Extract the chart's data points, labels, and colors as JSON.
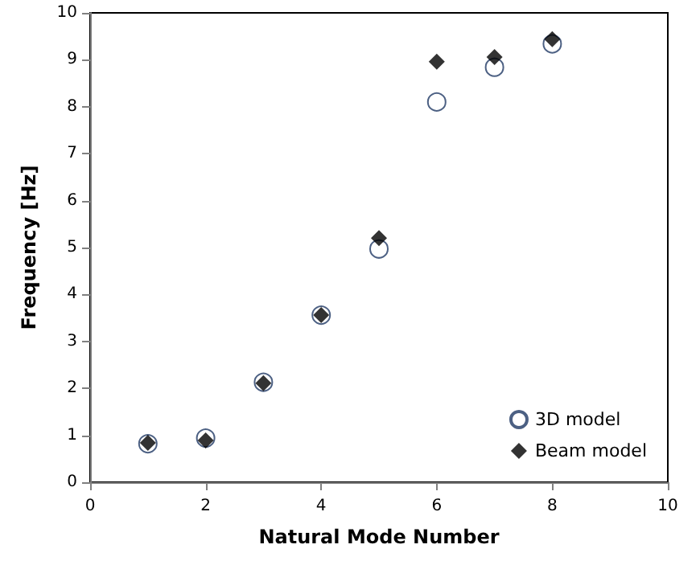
{
  "chart_data": {
    "type": "scatter",
    "xlabel": "Natural Mode Number",
    "ylabel": "Frequency [Hz]",
    "xlim": [
      0,
      10
    ],
    "xticks": [
      0,
      2,
      4,
      6,
      8,
      10
    ],
    "ylim": [
      0,
      10
    ],
    "yticks": [
      0,
      1,
      2,
      3,
      4,
      5,
      6,
      7,
      8,
      9,
      10
    ],
    "grid": false,
    "legend": "bottom right",
    "x": [
      1,
      2,
      3,
      4,
      5,
      6,
      7,
      8
    ],
    "series": [
      {
        "name": "3D model",
        "color": "#1f3864",
        "marker": "circle",
        "values": [
          0.82,
          0.94,
          2.13,
          3.56,
          4.97,
          8.1,
          8.84,
          9.34
        ]
      },
      {
        "name": "Beam model",
        "color": "#000000",
        "marker": "diamond",
        "values": [
          0.84,
          0.89,
          2.11,
          3.56,
          5.2,
          8.96,
          9.06,
          9.44
        ]
      }
    ]
  }
}
